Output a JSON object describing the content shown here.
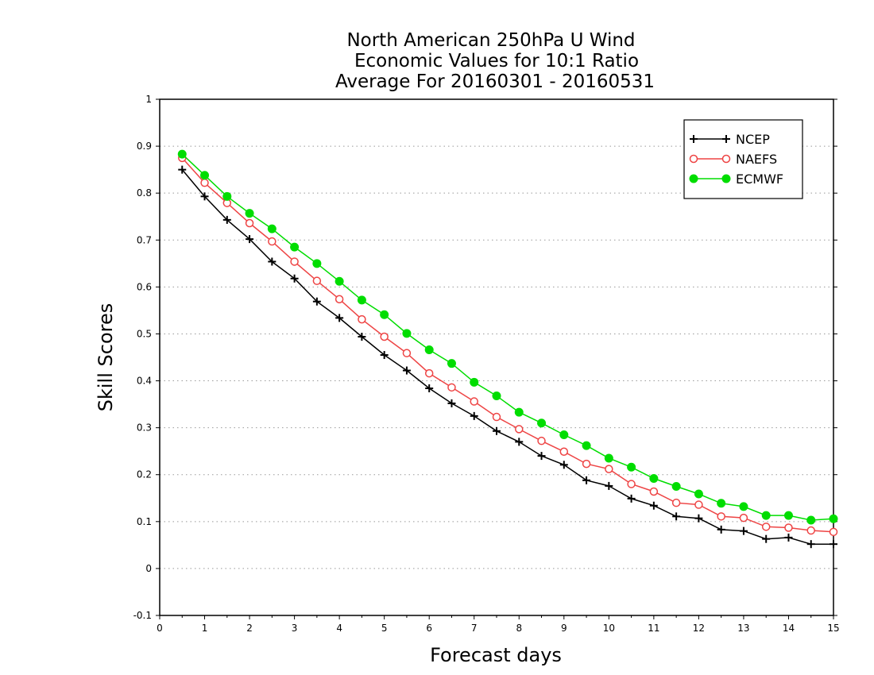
{
  "chart_data": {
    "type": "line",
    "title_lines": [
      "North American 250hPa U Wind",
      "Economic Values for 10:1 Ratio",
      "Average For 20160301 - 20160531"
    ],
    "xlabel": "Forecast days",
    "ylabel": "Skill Scores",
    "xlim": [
      0,
      15
    ],
    "ylim": [
      -0.1,
      1
    ],
    "x_ticks": [
      "0",
      "1",
      "2",
      "3",
      "4",
      "5",
      "6",
      "7",
      "8",
      "9",
      "10",
      "11",
      "12",
      "13",
      "14",
      "15"
    ],
    "y_ticks": [
      "-0.1",
      "0",
      "0.1",
      "0.2",
      "0.3",
      "0.4",
      "0.5",
      "0.6",
      "0.7",
      "0.8",
      "0.9",
      "1"
    ],
    "grid": "horizontal dotted",
    "legend_position": "top-right",
    "x": [
      0.5,
      1,
      1.5,
      2,
      2.5,
      3,
      3.5,
      4,
      4.5,
      5,
      5.5,
      6,
      6.5,
      7,
      7.5,
      8,
      8.5,
      9,
      9.5,
      10,
      10.5,
      11,
      11.5,
      12,
      12.5,
      13,
      13.5,
      14,
      14.5,
      15
    ],
    "series": [
      {
        "name": "NCEP",
        "color": "#000000",
        "marker": "plus",
        "values": [
          0.85,
          0.793,
          0.743,
          0.702,
          0.654,
          0.618,
          0.569,
          0.534,
          0.494,
          0.455,
          0.422,
          0.384,
          0.352,
          0.325,
          0.293,
          0.27,
          0.24,
          0.221,
          0.188,
          0.176,
          0.149,
          0.134,
          0.111,
          0.107,
          0.083,
          0.08,
          0.063,
          0.066,
          0.052,
          0.052
        ]
      },
      {
        "name": "NAEFS",
        "color": "#ee4444",
        "marker": "open-circle",
        "values": [
          0.875,
          0.822,
          0.779,
          0.736,
          0.697,
          0.654,
          0.613,
          0.574,
          0.531,
          0.494,
          0.459,
          0.416,
          0.386,
          0.356,
          0.323,
          0.297,
          0.272,
          0.249,
          0.223,
          0.212,
          0.18,
          0.164,
          0.14,
          0.136,
          0.111,
          0.108,
          0.089,
          0.087,
          0.081,
          0.078
        ]
      },
      {
        "name": "ECMWF",
        "color": "#00dd00",
        "marker": "filled-circle",
        "values": [
          0.883,
          0.838,
          0.793,
          0.757,
          0.724,
          0.685,
          0.65,
          0.612,
          0.572,
          0.541,
          0.501,
          0.466,
          0.437,
          0.397,
          0.368,
          0.333,
          0.31,
          0.285,
          0.262,
          0.235,
          0.216,
          0.192,
          0.175,
          0.159,
          0.139,
          0.132,
          0.113,
          0.113,
          0.103,
          0.106
        ]
      }
    ]
  }
}
